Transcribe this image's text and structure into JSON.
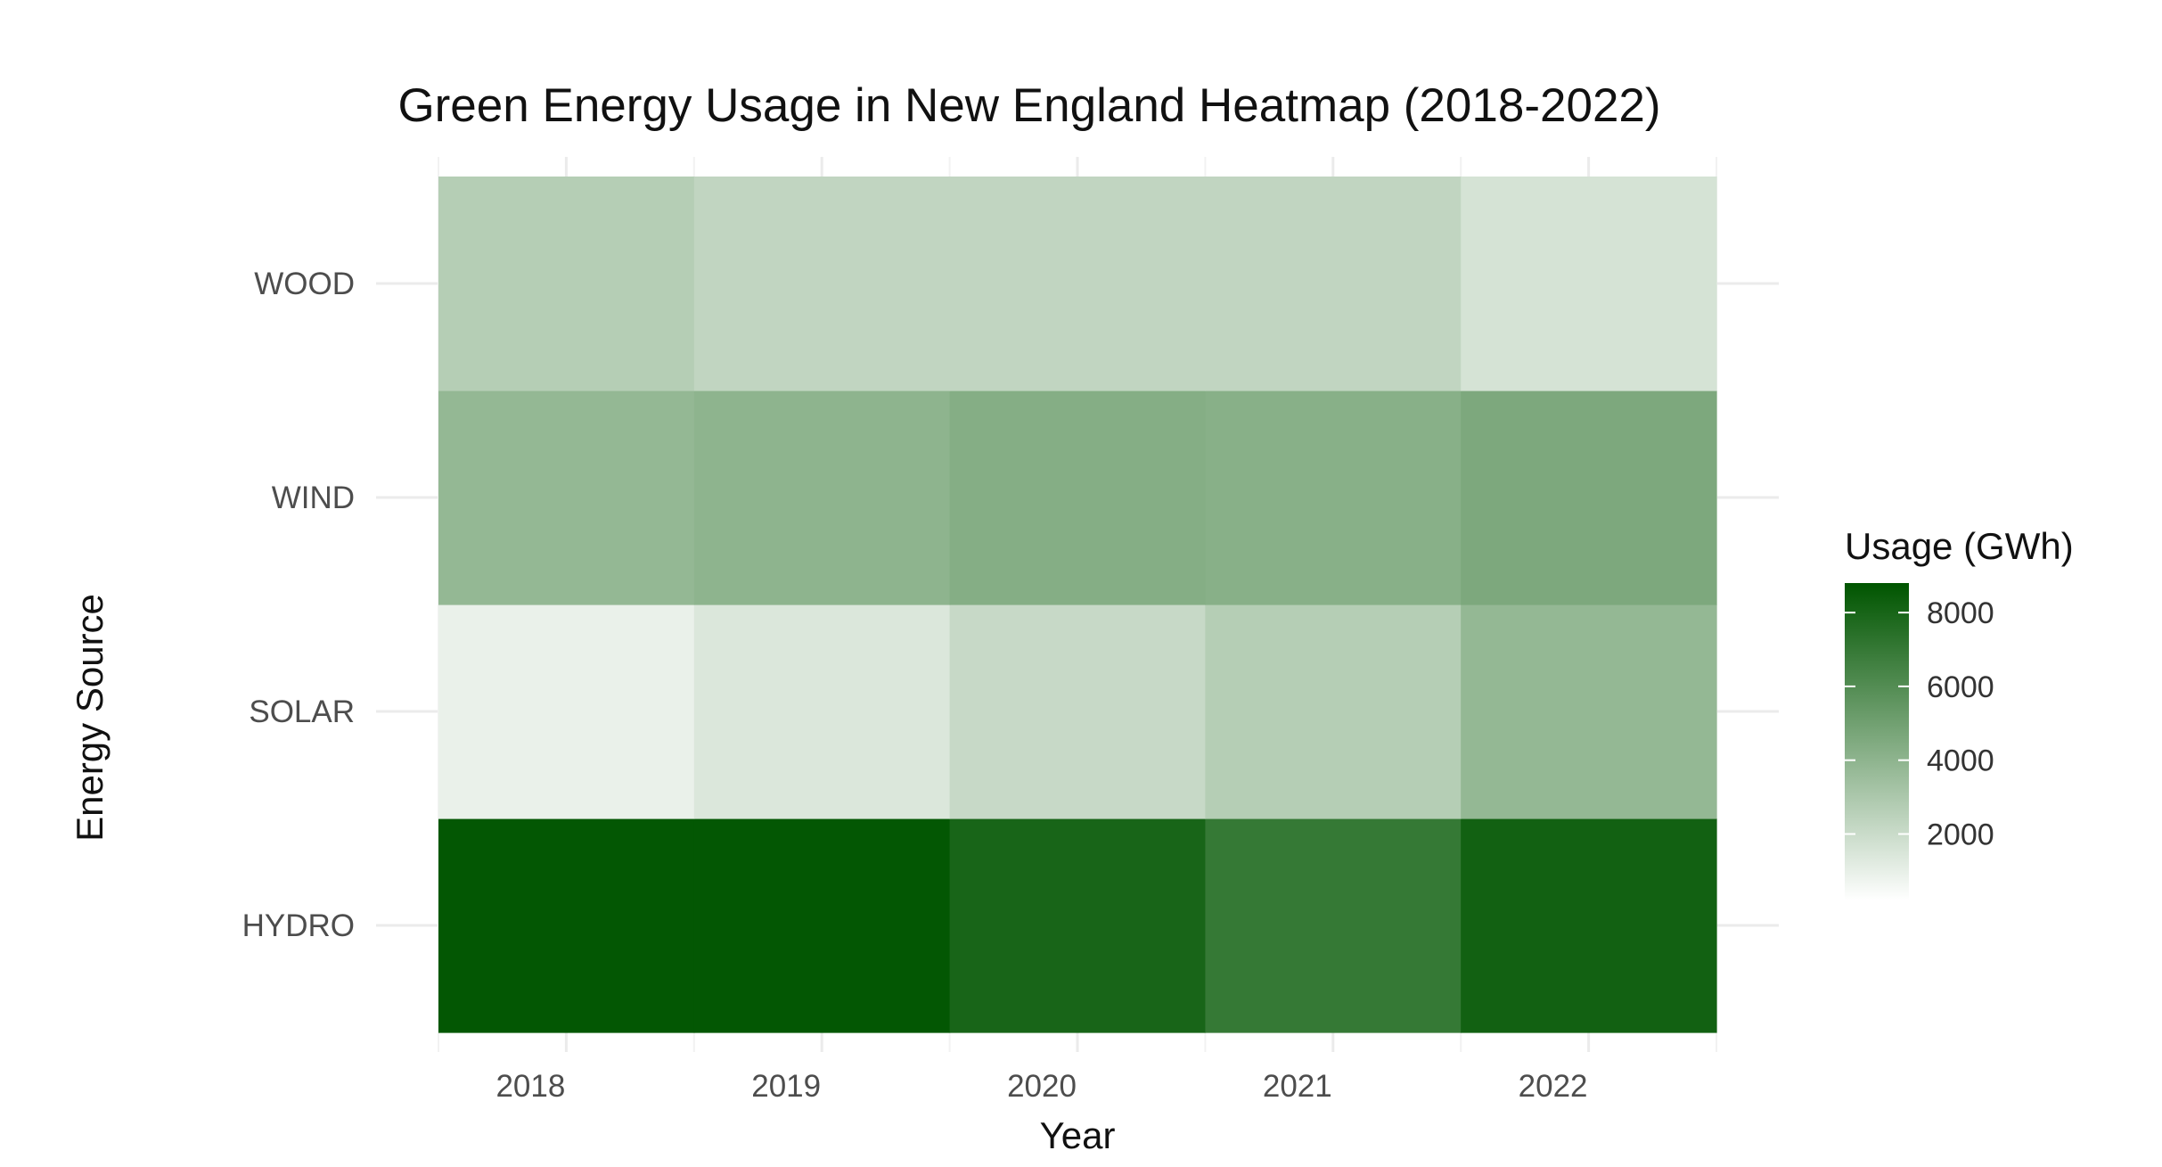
{
  "chart_data": {
    "type": "heatmap",
    "title": "Green Energy Usage in New England Heatmap (2018-2022)",
    "xlabel": "Year",
    "ylabel": "Energy Source",
    "x": [
      "2018",
      "2019",
      "2020",
      "2021",
      "2022"
    ],
    "y": [
      "HYDRO",
      "SOLAR",
      "WIND",
      "WOOD"
    ],
    "values": [
      [
        8700,
        8700,
        8000,
        7000,
        8200
      ],
      [
        900,
        1400,
        2100,
        2700,
        3800
      ],
      [
        3800,
        4000,
        4300,
        4200,
        4600
      ],
      [
        2700,
        2300,
        2300,
        2300,
        1600
      ]
    ],
    "legend": {
      "title": "Usage (GWh)",
      "ticks": [
        2000,
        4000,
        6000,
        8000
      ],
      "range": [
        200,
        8800
      ],
      "low_color": "#ffffff",
      "high_color": "#005500",
      "position": "right"
    },
    "grid": true
  }
}
